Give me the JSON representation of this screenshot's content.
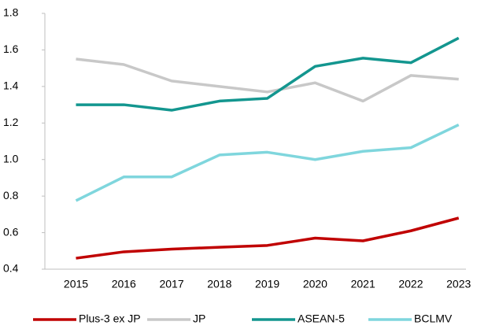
{
  "chart_data": {
    "type": "line",
    "categories": [
      "2015",
      "2016",
      "2017",
      "2018",
      "2019",
      "2020",
      "2021",
      "2022",
      "2023"
    ],
    "series": [
      {
        "name": "Plus-3 ex JP",
        "color": "#c00000",
        "values": [
          0.46,
          0.495,
          0.51,
          0.52,
          0.53,
          0.57,
          0.555,
          0.61,
          0.68
        ]
      },
      {
        "name": "JP",
        "color": "#c8c8c8",
        "values": [
          1.55,
          1.52,
          1.43,
          1.4,
          1.37,
          1.42,
          1.32,
          1.46,
          1.44
        ]
      },
      {
        "name": "ASEAN-5",
        "color": "#13968f",
        "values": [
          1.3,
          1.3,
          1.27,
          1.32,
          1.335,
          1.51,
          1.555,
          1.53,
          1.665
        ]
      },
      {
        "name": "BCLMV",
        "color": "#7fd6dd",
        "values": [
          0.775,
          0.905,
          0.905,
          1.025,
          1.04,
          1.0,
          1.045,
          1.065,
          1.19
        ]
      }
    ],
    "ylim": [
      0.4,
      1.8
    ],
    "yticks": [
      0.4,
      0.6,
      0.8,
      {
        "value": 1,
        "label": "1.0"
      },
      1.2,
      1.4,
      1.6,
      1.8
    ],
    "grid": false,
    "legend": "bottom"
  }
}
